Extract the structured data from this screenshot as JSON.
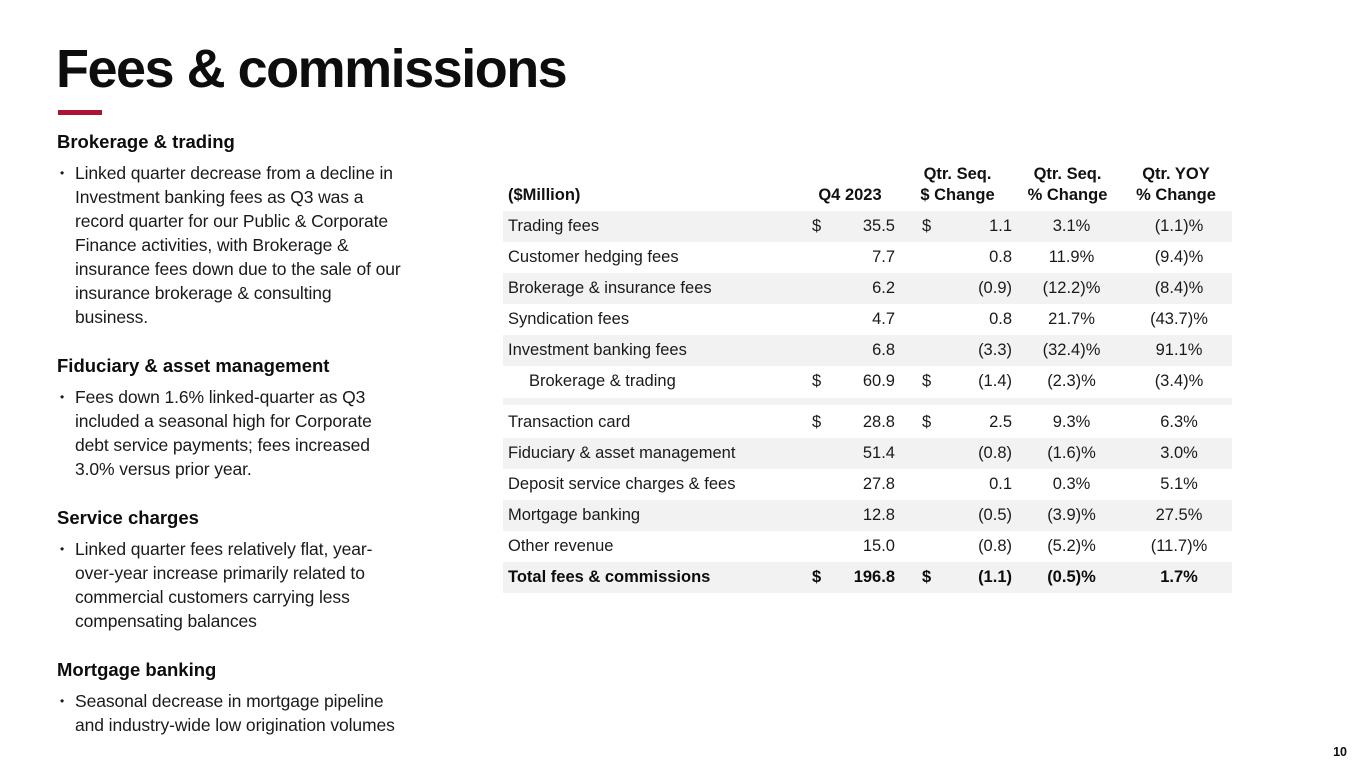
{
  "slide": {
    "title": "Fees & commissions",
    "page_number": "10",
    "accent_color": "#AE1333",
    "row_shade_color": "#F2F2F2"
  },
  "sections": [
    {
      "heading": "Brokerage & trading",
      "bullets": [
        [
          "Linked quarter decrease from a decline in",
          "Investment banking fees as Q3 was a",
          "record quarter for our Public & Corporate",
          "Finance activities, with Brokerage &",
          "insurance fees down due to the sale of our",
          "insurance brokerage & consulting",
          "business."
        ]
      ]
    },
    {
      "heading": "Fiduciary & asset management",
      "bullets": [
        [
          "Fees down 1.6% linked-quarter as Q3",
          "included a seasonal high for Corporate",
          "debt service payments; fees increased",
          "3.0% versus prior year."
        ]
      ]
    },
    {
      "heading": "Service charges",
      "bullets": [
        [
          "Linked quarter fees relatively flat, year-",
          "over-year increase primarily related to",
          "commercial customers carrying less",
          "compensating balances"
        ]
      ]
    },
    {
      "heading": "Mortgage banking",
      "bullets": [
        [
          "Seasonal decrease in mortgage pipeline",
          "and industry-wide low origination volumes"
        ]
      ]
    }
  ],
  "table": {
    "unit_label": "($Million)",
    "headers": [
      [
        "Q4 2023"
      ],
      [
        "Qtr. Seq.",
        "$ Change"
      ],
      [
        "Qtr. Seq.",
        "% Change"
      ],
      [
        "Qtr. YOY",
        "% Change"
      ]
    ],
    "rows": [
      {
        "label": "Trading fees",
        "q4_dollar": "$",
        "q4": "35.5",
        "chg_dollar": "$",
        "chg": "1.1",
        "seq_pct": "3.1%",
        "yoy_pct": "(1.1)%",
        "shaded": true
      },
      {
        "label": "Customer hedging fees",
        "q4_dollar": "",
        "q4": "7.7",
        "chg_dollar": "",
        "chg": "0.8",
        "seq_pct": "11.9%",
        "yoy_pct": "(9.4)%",
        "shaded": false
      },
      {
        "label": "Brokerage & insurance fees",
        "q4_dollar": "",
        "q4": "6.2",
        "chg_dollar": "",
        "chg": "(0.9)",
        "seq_pct": "(12.2)%",
        "yoy_pct": "(8.4)%",
        "shaded": true
      },
      {
        "label": "Syndication fees",
        "q4_dollar": "",
        "q4": "4.7",
        "chg_dollar": "",
        "chg": "0.8",
        "seq_pct": "21.7%",
        "yoy_pct": "(43.7)%",
        "shaded": false
      },
      {
        "label": "Investment banking fees",
        "q4_dollar": "",
        "q4": "6.8",
        "chg_dollar": "",
        "chg": "(3.3)",
        "seq_pct": "(32.4)%",
        "yoy_pct": "91.1%",
        "shaded": true
      },
      {
        "label": "Brokerage & trading",
        "q4_dollar": "$",
        "q4": "60.9",
        "chg_dollar": "$",
        "chg": "(1.4)",
        "seq_pct": "(2.3)%",
        "yoy_pct": "(3.4)%",
        "shaded": false,
        "indent": true
      },
      {
        "type": "spacer"
      },
      {
        "label": "Transaction card",
        "q4_dollar": "$",
        "q4": "28.8",
        "chg_dollar": "$",
        "chg": "2.5",
        "seq_pct": "9.3%",
        "yoy_pct": "6.3%",
        "shaded": false
      },
      {
        "label": "Fiduciary & asset management",
        "q4_dollar": "",
        "q4": "51.4",
        "chg_dollar": "",
        "chg": "(0.8)",
        "seq_pct": "(1.6)%",
        "yoy_pct": "3.0%",
        "shaded": true
      },
      {
        "label": "Deposit service charges & fees",
        "q4_dollar": "",
        "q4": "27.8",
        "chg_dollar": "",
        "chg": "0.1",
        "seq_pct": "0.3%",
        "yoy_pct": "5.1%",
        "shaded": false
      },
      {
        "label": "Mortgage banking",
        "q4_dollar": "",
        "q4": "12.8",
        "chg_dollar": "",
        "chg": "(0.5)",
        "seq_pct": "(3.9)%",
        "yoy_pct": "27.5%",
        "shaded": true
      },
      {
        "label": "Other revenue",
        "q4_dollar": "",
        "q4": "15.0",
        "chg_dollar": "",
        "chg": "(0.8)",
        "seq_pct": "(5.2)%",
        "yoy_pct": "(11.7)%",
        "shaded": false
      },
      {
        "label": "Total fees & commissions",
        "q4_dollar": "$",
        "q4": "196.8",
        "chg_dollar": "$",
        "chg": "(1.1)",
        "seq_pct": "(0.5)%",
        "yoy_pct": "1.7%",
        "shaded": true,
        "total": true
      }
    ]
  }
}
